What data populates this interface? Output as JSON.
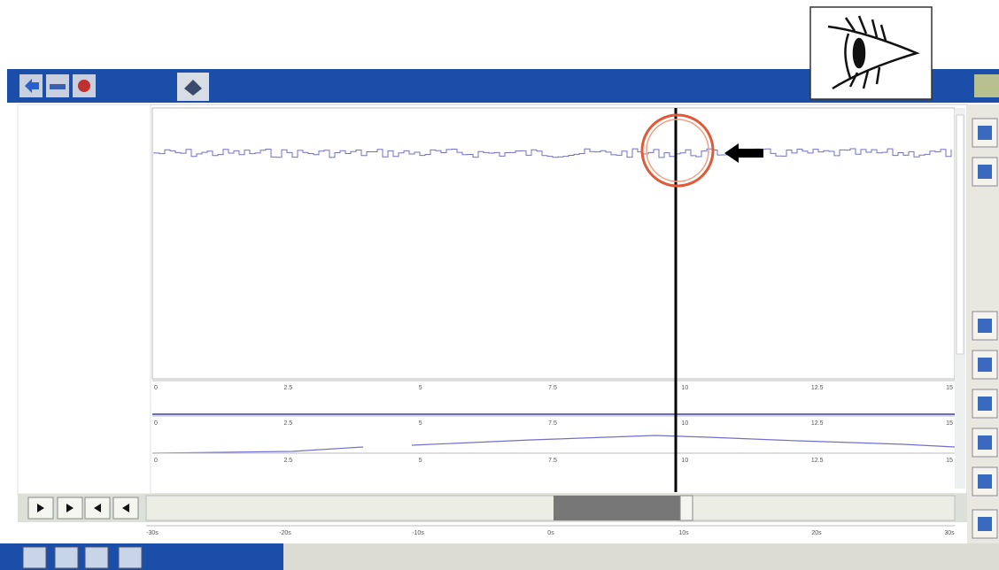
{
  "plot_axis": {
    "ticks": [
      "0",
      "2.5",
      "5",
      "7.5",
      "10",
      "12.5",
      "15"
    ]
  },
  "scroll_axis": {
    "ticks": [
      "-30s",
      "-20s",
      "-10s",
      "0s",
      "10s",
      "20s",
      "30s"
    ]
  }
}
